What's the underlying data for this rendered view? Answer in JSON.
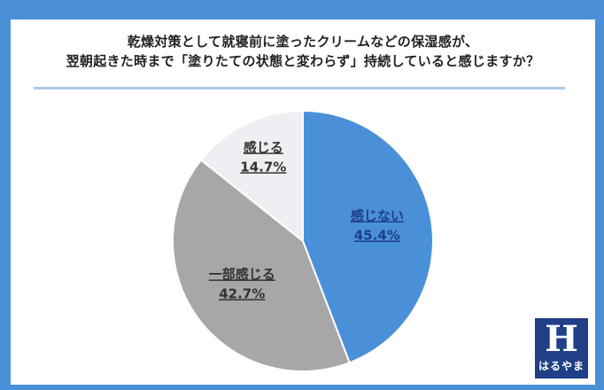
{
  "title_line1": "乾燥対策として就寝前に塗ったクリームなどの保湿感が、",
  "title_line2": "翌朝起きた時まで「塗りたての状態と変わらず」持続していると感じますか？",
  "logo_text": "はるやま",
  "colors": {
    "frame": "#4a90d9",
    "rule": "#a9c9ea"
  },
  "chart_data": {
    "type": "pie",
    "title": "",
    "slices": [
      {
        "label": "感じない",
        "value": 45.4,
        "value_label": "45.4%",
        "color": "#4a90d9",
        "text_color": "#1f3f87"
      },
      {
        "label": "一部感じる",
        "value": 42.7,
        "value_label": "42.7%",
        "color": "#a8a6a7",
        "text_color": "#333333"
      },
      {
        "label": "感じる",
        "value": 14.7,
        "value_label": "14.7%",
        "color": "#efeff3",
        "text_color": "#333333"
      }
    ],
    "start": "12 o'clock",
    "direction": "clockwise"
  }
}
